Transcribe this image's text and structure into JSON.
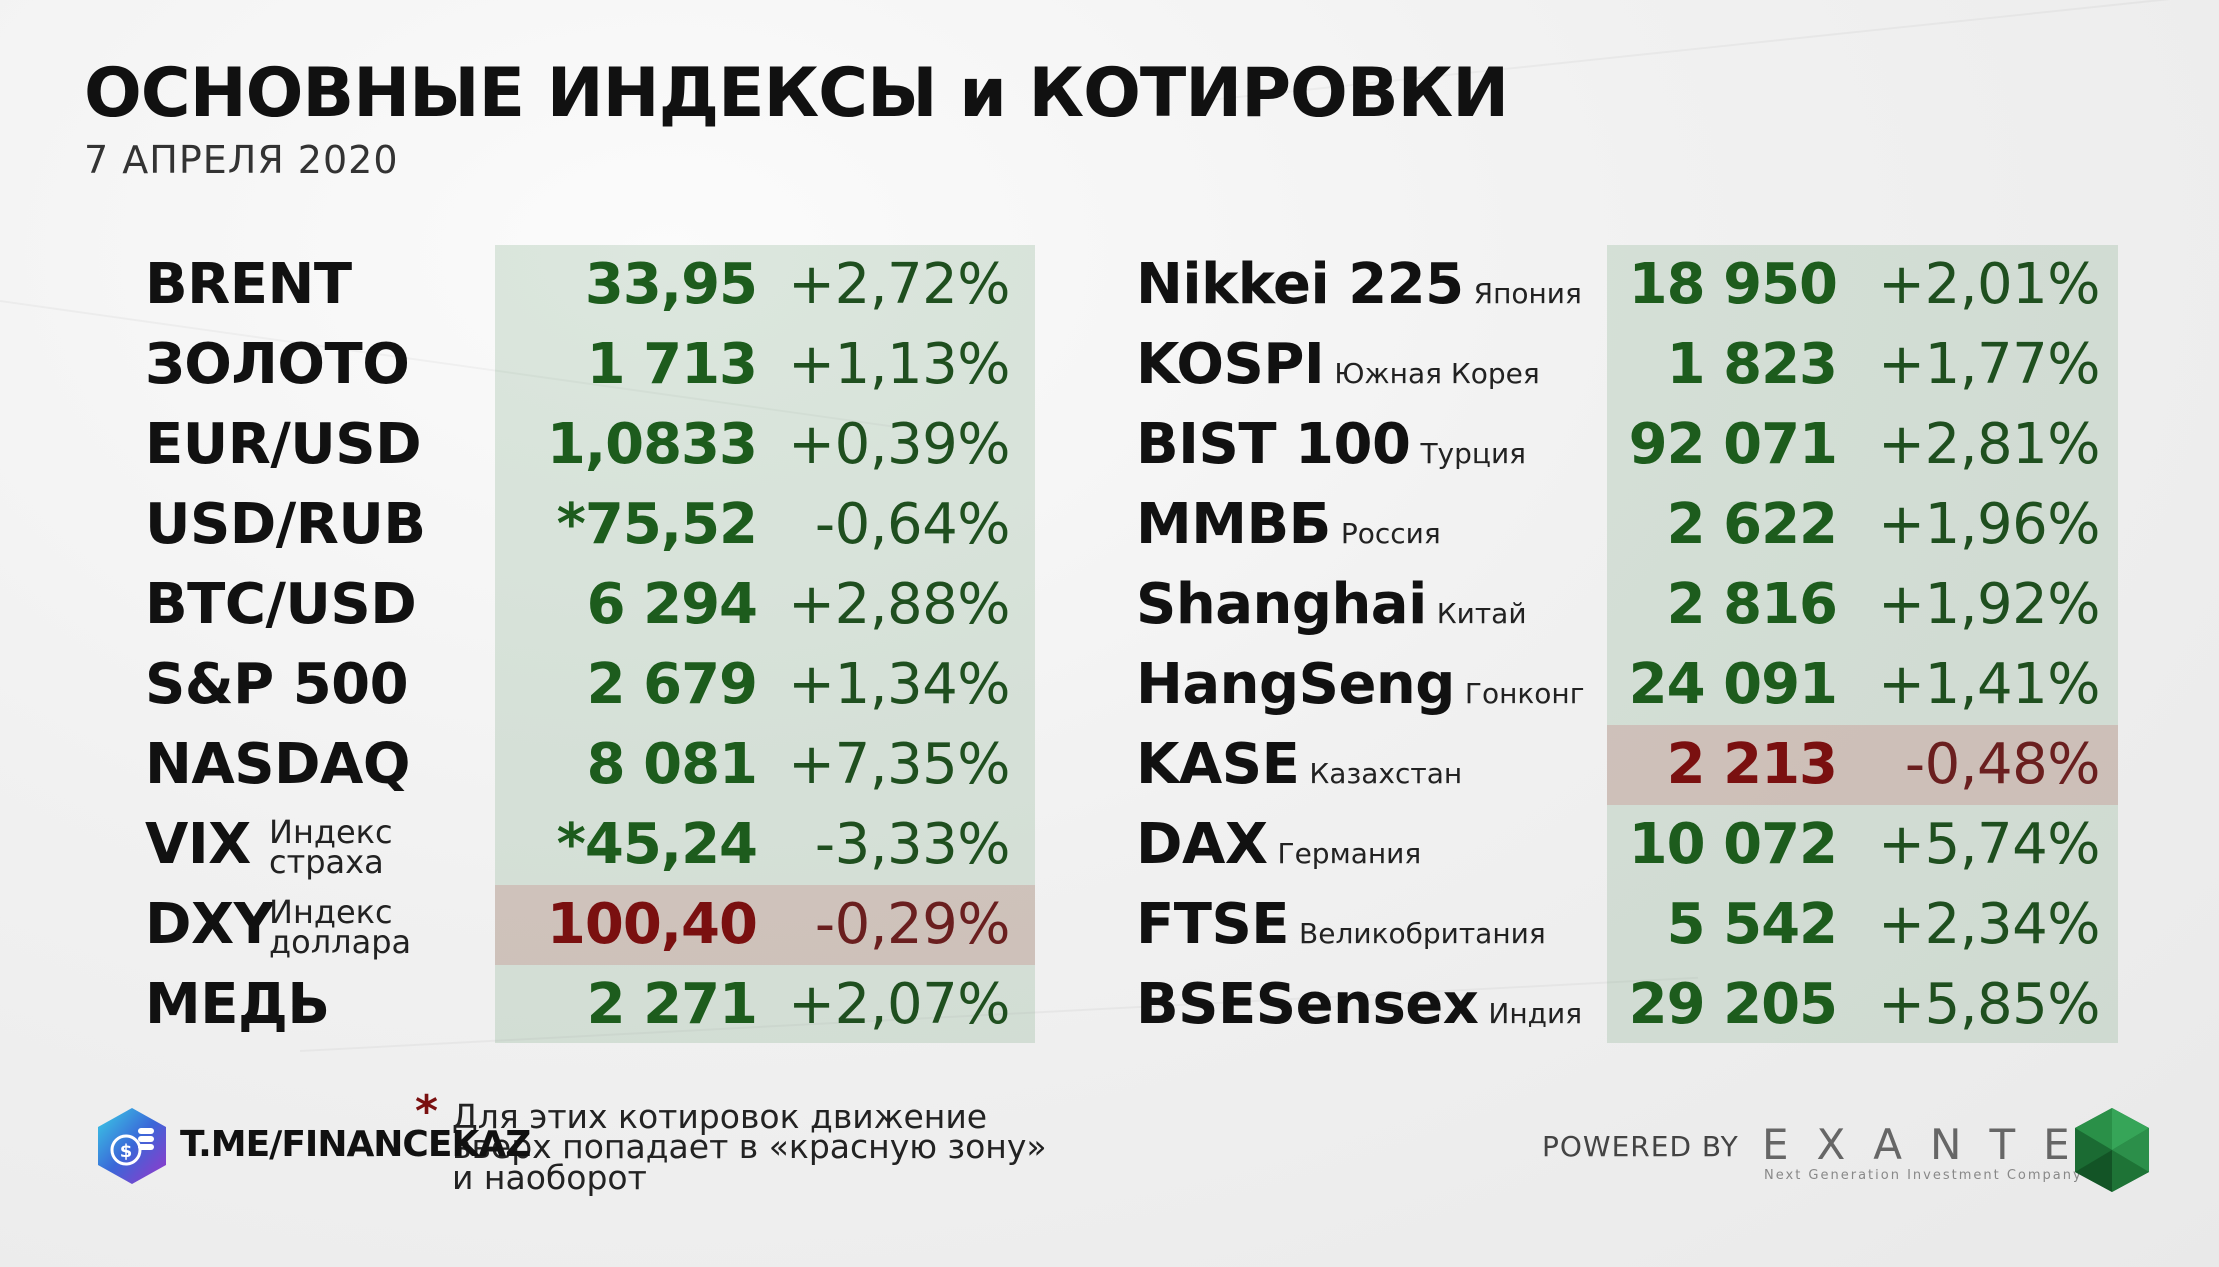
{
  "title": "ОСНОВНЫЕ ИНДЕКСЫ и КОТИРОВКИ",
  "date": "7 АПРЕЛЯ 2020",
  "left_rows": [
    {
      "name": "BRENT",
      "sub": "",
      "value": "33,95",
      "change": "+2,72%",
      "negative": false
    },
    {
      "name": "ЗОЛОТО",
      "sub": "",
      "value": "1 713",
      "change": "+1,13%",
      "negative": false
    },
    {
      "name": "EUR/USD",
      "sub": "",
      "value": "1,0833",
      "change": "+0,39%",
      "negative": false
    },
    {
      "name": "USD/RUB",
      "sub": "",
      "value": "*75,52",
      "change": "-0,64%",
      "negative": false
    },
    {
      "name": "BTC/USD",
      "sub": "",
      "value": "6 294",
      "change": "+2,88%",
      "negative": false
    },
    {
      "name": "S&P 500",
      "sub": "",
      "value": "2 679",
      "change": "+1,34%",
      "negative": false
    },
    {
      "name": "NASDAQ",
      "sub": "",
      "value": "8 081",
      "change": "+7,35%",
      "negative": false
    },
    {
      "name": "VIX",
      "sub_line1": "Индекс",
      "sub_line2": "страха",
      "value": "*45,24",
      "change": "-3,33%",
      "negative": false
    },
    {
      "name": "DXY",
      "sub_line1": "Индекс",
      "sub_line2": "доллара",
      "value": "100,40",
      "change": "-0,29%",
      "negative": true
    },
    {
      "name": "МЕДЬ",
      "sub": "",
      "value": "2 271",
      "change": "+2,07%",
      "negative": false
    }
  ],
  "right_rows": [
    {
      "name": "Nikkei 225",
      "sub": "Япония",
      "value": "18 950",
      "change": "+2,01%",
      "negative": false
    },
    {
      "name": "KOSPI",
      "sub": "Южная Корея",
      "value": "1 823",
      "change": "+1,77%",
      "negative": false
    },
    {
      "name": "BIST 100",
      "sub": "Турция",
      "value": "92 071",
      "change": "+2,81%",
      "negative": false
    },
    {
      "name": "ММВБ",
      "sub": "Россия",
      "value": "2 622",
      "change": "+1,96%",
      "negative": false
    },
    {
      "name": "Shanghai",
      "sub": "Китай",
      "value": "2 816",
      "change": "+1,92%",
      "negative": false
    },
    {
      "name": "HangSeng",
      "sub": "Гонконг",
      "value": "24 091",
      "change": "+1,41%",
      "negative": false
    },
    {
      "name": "KASE",
      "sub": "Казахстан",
      "value": "2 213",
      "change": "-0,48%",
      "negative": true
    },
    {
      "name": "DAX",
      "sub": "Германия",
      "value": "10 072",
      "change": "+5,74%",
      "negative": false
    },
    {
      "name": "FTSE",
      "sub": "Великобритания",
      "value": "5 542",
      "change": "+2,34%",
      "negative": false
    },
    {
      "name": "BSESensex",
      "sub": "Индия",
      "value": "29 205",
      "change": "+5,85%",
      "negative": false
    }
  ],
  "footnote": {
    "star": "*",
    "line1": "Для этих котировок движение",
    "line2": "вверх попадает в «красную зону»",
    "line3": "и наоборот"
  },
  "telegram": {
    "label": "T.ME/FINANCEKAZ",
    "icon": "telegram-finance-logo"
  },
  "sponsor": {
    "powered_by": "POWERED BY",
    "brand": "EXANTE",
    "tagline": "Next Generation Investment Company",
    "icon": "emerald-gem-logo"
  },
  "colors": {
    "positive_value": "#1d5c1d",
    "negative_value": "#7a1010",
    "green_band": "#d6e3d8",
    "red_band": "#ecd1cf"
  }
}
